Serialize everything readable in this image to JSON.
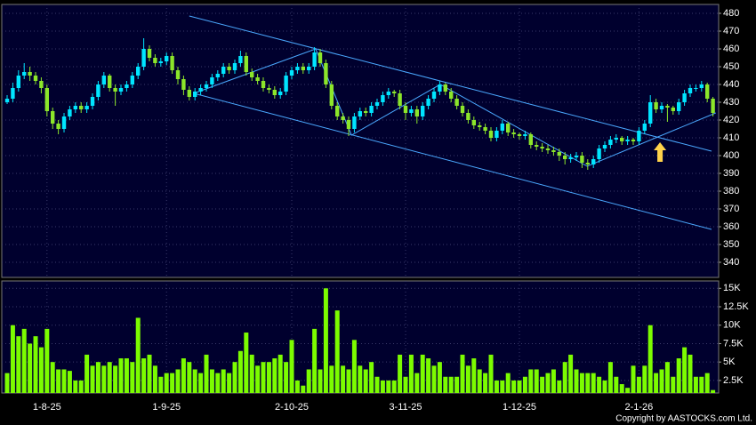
{
  "chart_data": [
    {
      "type": "candlestick",
      "up_color": "#00e5ff",
      "down_color": "#8ce62a",
      "line_color": "#4aa8ff",
      "arrow_color": "#ffd24a",
      "xlim": [
        -0.94,
        125
      ],
      "ylim": [
        331.5,
        485
      ],
      "yticks": [
        340,
        350,
        360,
        370,
        380,
        390,
        400,
        410,
        420,
        430,
        440,
        450,
        460,
        470,
        480
      ],
      "xticks": [
        {
          "value": 7,
          "label": "1-8-25"
        },
        {
          "value": 28,
          "label": "1-9-25"
        },
        {
          "value": 50,
          "label": "2-10-25"
        },
        {
          "value": 70,
          "label": "3-11-25"
        },
        {
          "value": 90,
          "label": "1-12-25"
        },
        {
          "value": 111,
          "label": "2-1-26"
        }
      ],
      "candles": [
        [
          430,
          434,
          429,
          432
        ],
        [
          432,
          441,
          430,
          438
        ],
        [
          438,
          448,
          436,
          445
        ],
        [
          445,
          452,
          443,
          447
        ],
        [
          447,
          450,
          442,
          445
        ],
        [
          445,
          447,
          440,
          442
        ],
        [
          442,
          444,
          435,
          438
        ],
        [
          438,
          440,
          422,
          425
        ],
        [
          425,
          427,
          415,
          418
        ],
        [
          418,
          420,
          412,
          415
        ],
        [
          415,
          424,
          413,
          422
        ],
        [
          422,
          428,
          420,
          426
        ],
        [
          426,
          430,
          424,
          428
        ],
        [
          428,
          430,
          424,
          426
        ],
        [
          426,
          430,
          424,
          428
        ],
        [
          428,
          435,
          426,
          433
        ],
        [
          433,
          442,
          431,
          440
        ],
        [
          440,
          447,
          438,
          445
        ],
        [
          445,
          446,
          436,
          438
        ],
        [
          438,
          440,
          428,
          436
        ],
        [
          436,
          440,
          434,
          438
        ],
        [
          438,
          442,
          436,
          440
        ],
        [
          440,
          447,
          438,
          445
        ],
        [
          445,
          452,
          443,
          450
        ],
        [
          450,
          466,
          448,
          460
        ],
        [
          460,
          462,
          453,
          455
        ],
        [
          455,
          457,
          450,
          452
        ],
        [
          452,
          455,
          450,
          453
        ],
        [
          453,
          458,
          451,
          456
        ],
        [
          456,
          458,
          446,
          448
        ],
        [
          448,
          450,
          440,
          443
        ],
        [
          443,
          445,
          434,
          437
        ],
        [
          437,
          439,
          431,
          433
        ],
        [
          433,
          438,
          431,
          436
        ],
        [
          436,
          440,
          434,
          438
        ],
        [
          438,
          442,
          436,
          440
        ],
        [
          440,
          446,
          438,
          444
        ],
        [
          444,
          448,
          442,
          446
        ],
        [
          446,
          452,
          444,
          450
        ],
        [
          450,
          452,
          446,
          448
        ],
        [
          448,
          454,
          446,
          452
        ],
        [
          452,
          459,
          450,
          456
        ],
        [
          456,
          458,
          445,
          447
        ],
        [
          447,
          449,
          442,
          444
        ],
        [
          444,
          446,
          440,
          442
        ],
        [
          442,
          444,
          436,
          438
        ],
        [
          438,
          440,
          435,
          437
        ],
        [
          437,
          439,
          432,
          434
        ],
        [
          434,
          438,
          432,
          436
        ],
        [
          436,
          447,
          434,
          445
        ],
        [
          445,
          450,
          443,
          448
        ],
        [
          448,
          452,
          446,
          450
        ],
        [
          450,
          452,
          446,
          448
        ],
        [
          448,
          452,
          446,
          450
        ],
        [
          450,
          461,
          448,
          458
        ],
        [
          458,
          460,
          450,
          452
        ],
        [
          452,
          454,
          438,
          440
        ],
        [
          440,
          442,
          426,
          428
        ],
        [
          428,
          430,
          420,
          422
        ],
        [
          422,
          424,
          418,
          420
        ],
        [
          420,
          422,
          411,
          415
        ],
        [
          415,
          424,
          413,
          422
        ],
        [
          422,
          427,
          420,
          425
        ],
        [
          425,
          427,
          422,
          424
        ],
        [
          424,
          430,
          422,
          428
        ],
        [
          428,
          432,
          426,
          430
        ],
        [
          430,
          436,
          428,
          434
        ],
        [
          434,
          438,
          432,
          436
        ],
        [
          436,
          437,
          433,
          435
        ],
        [
          435,
          437,
          426,
          428
        ],
        [
          428,
          430,
          420,
          424
        ],
        [
          424,
          428,
          422,
          426
        ],
        [
          426,
          428,
          418,
          422
        ],
        [
          422,
          430,
          420,
          428
        ],
        [
          428,
          434,
          426,
          432
        ],
        [
          432,
          438,
          430,
          436
        ],
        [
          436,
          442,
          434,
          440
        ],
        [
          440,
          441,
          434,
          436
        ],
        [
          436,
          438,
          430,
          432
        ],
        [
          432,
          434,
          426,
          428
        ],
        [
          428,
          430,
          422,
          424
        ],
        [
          424,
          426,
          418,
          420
        ],
        [
          420,
          422,
          415,
          417
        ],
        [
          417,
          419,
          414,
          416
        ],
        [
          416,
          418,
          412,
          414
        ],
        [
          414,
          416,
          408,
          410
        ],
        [
          410,
          416,
          408,
          414
        ],
        [
          414,
          420,
          412,
          418
        ],
        [
          418,
          419,
          411,
          413
        ],
        [
          413,
          415,
          410,
          412
        ],
        [
          412,
          413,
          409,
          411
        ],
        [
          411,
          414,
          409,
          412
        ],
        [
          412,
          413,
          404,
          406
        ],
        [
          406,
          408,
          403,
          405
        ],
        [
          405,
          407,
          402,
          404
        ],
        [
          404,
          406,
          401,
          403
        ],
        [
          403,
          405,
          400,
          402
        ],
        [
          402,
          404,
          397,
          400
        ],
        [
          400,
          402,
          395,
          398
        ],
        [
          398,
          401,
          396,
          399
        ],
        [
          399,
          402,
          397,
          400
        ],
        [
          400,
          402,
          393,
          396
        ],
        [
          396,
          398,
          392,
          395
        ],
        [
          395,
          400,
          393,
          398
        ],
        [
          398,
          406,
          396,
          404
        ],
        [
          404,
          408,
          402,
          406
        ],
        [
          406,
          411,
          404,
          409
        ],
        [
          409,
          412,
          407,
          410
        ],
        [
          410,
          411,
          406,
          408
        ],
        [
          408,
          411,
          406,
          409
        ],
        [
          409,
          410,
          406,
          408
        ],
        [
          408,
          416,
          406,
          414
        ],
        [
          414,
          420,
          412,
          418
        ],
        [
          418,
          434,
          416,
          430
        ],
        [
          430,
          432,
          424,
          426
        ],
        [
          426,
          430,
          424,
          428
        ],
        [
          428,
          429,
          419,
          427
        ],
        [
          427,
          428,
          423,
          425
        ],
        [
          425,
          432,
          423,
          430
        ],
        [
          430,
          437,
          428,
          435
        ],
        [
          435,
          440,
          433,
          438
        ],
        [
          438,
          440,
          436,
          438
        ],
        [
          438,
          442,
          436,
          440
        ],
        [
          440,
          441,
          430,
          432
        ],
        [
          432,
          433,
          422,
          424
        ]
      ],
      "lines": [
        {
          "x": [
            32,
            123.75
          ],
          "y": [
            478.5,
            402.5
          ]
        },
        {
          "x": [
            32.8,
            123.75
          ],
          "y": [
            435,
            358.5
          ]
        },
        {
          "x": [
            32.8,
            54.2,
            60.5,
            76.1,
            101.9,
            124.5
          ],
          "y": [
            435,
            460,
            411.5,
            440,
            394,
            424
          ]
        }
      ],
      "arrow": {
        "x": 114.7,
        "y": [
          407.5,
          396.5
        ]
      }
    },
    {
      "type": "bar",
      "color": "#7cfc00",
      "xlim": [
        -0.94,
        125
      ],
      "ylim": [
        800,
        16000
      ],
      "yticks": [
        {
          "value": 2500,
          "label": "2.5K"
        },
        {
          "value": 5000,
          "label": "5K"
        },
        {
          "value": 7500,
          "label": "7.5K"
        },
        {
          "value": 10000,
          "label": "10K"
        },
        {
          "value": 12500,
          "label": "12.5K"
        },
        {
          "value": 15000,
          "label": "15K"
        }
      ],
      "values": [
        3500,
        10000,
        8500,
        9500,
        7500,
        8500,
        7000,
        9500,
        5000,
        4000,
        4000,
        3800,
        2500,
        2500,
        6000,
        4500,
        5000,
        4500,
        5000,
        4500,
        5500,
        5500,
        5000,
        11000,
        5500,
        6000,
        4500,
        3000,
        3500,
        3500,
        4000,
        5500,
        5000,
        4000,
        3500,
        6000,
        4000,
        3500,
        4000,
        3500,
        5000,
        6500,
        9000,
        6000,
        4500,
        5000,
        5000,
        5500,
        6000,
        5000,
        8000,
        2500,
        1800,
        4000,
        9500,
        4000,
        15000,
        4500,
        12000,
        4500,
        4000,
        8000,
        4500,
        4000,
        5000,
        3000,
        2500,
        2500,
        2500,
        6000,
        3000,
        6000,
        3500,
        6000,
        5500,
        4500,
        5000,
        3000,
        3000,
        3000,
        6000,
        4500,
        5500,
        4000,
        3500,
        6000,
        2500,
        2500,
        3500,
        2500,
        2500,
        3000,
        4000,
        4000,
        3000,
        3500,
        4000,
        2500,
        5000,
        6000,
        4000,
        3500,
        3500,
        3500,
        3000,
        2500,
        5000,
        3000,
        2000,
        1500,
        4500,
        3000,
        4500,
        10000,
        3500,
        4000,
        5000,
        3000,
        5500,
        7000,
        6000,
        3000,
        3000,
        3500,
        1200
      ]
    }
  ],
  "copyright": "Copyright by AASTOCKS.com Ltd."
}
